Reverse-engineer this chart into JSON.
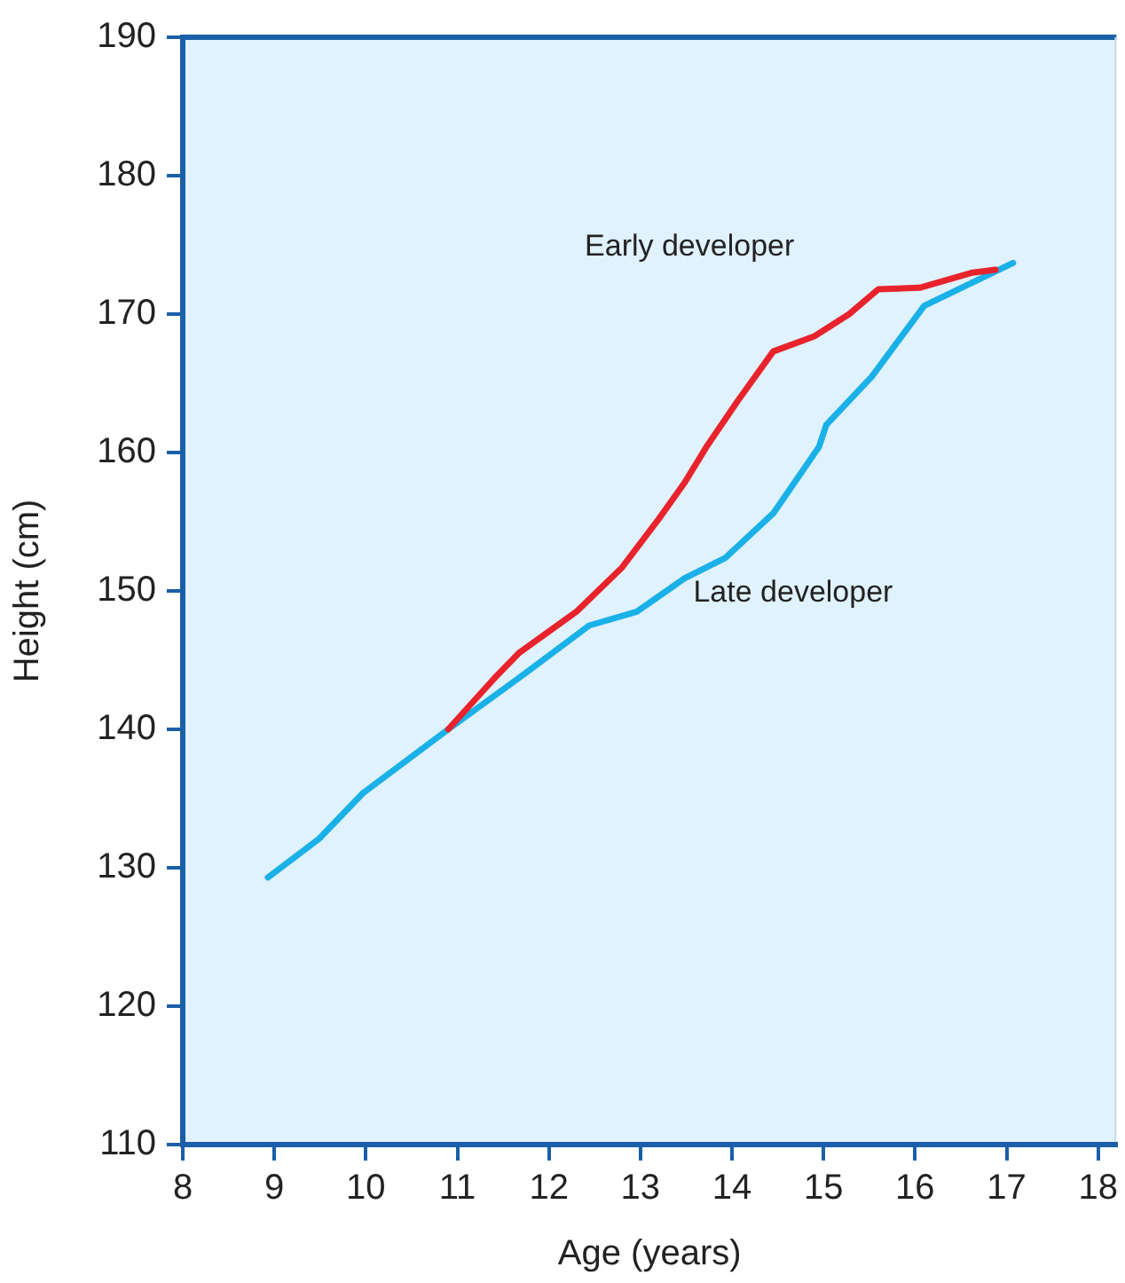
{
  "chart_data": {
    "type": "line",
    "xlabel": "Age (years)",
    "ylabel": "Height (cm)",
    "xlim": [
      8,
      18.2
    ],
    "xticks": [
      8,
      9,
      10,
      11,
      12,
      13,
      14,
      15,
      16,
      17,
      18
    ],
    "ylim": [
      110,
      190
    ],
    "yticks": [
      110,
      120,
      130,
      140,
      150,
      160,
      170,
      180,
      190
    ],
    "grid": false,
    "legend": false,
    "marker": "none",
    "line_style": "solid",
    "series": [
      {
        "name": "Early developer",
        "color": "#e8232b",
        "x": [
          10.9,
          11.42,
          11.67,
          12.3,
          12.8,
          13.2,
          13.48,
          13.73,
          14.06,
          14.45,
          14.9,
          15.28,
          15.6,
          16.05,
          16.63,
          16.88
        ],
        "values": [
          140,
          143.8,
          145.5,
          148.5,
          151.7,
          155.2,
          157.8,
          160.5,
          163.7,
          167.3,
          168.4,
          170,
          171.8,
          171.9,
          173,
          173.2
        ]
      },
      {
        "name": "Late developer",
        "color": "#1ab0e8",
        "x": [
          8.93,
          9.49,
          9.97,
          10.9,
          11.67,
          12.44,
          12.96,
          13.48,
          13.93,
          14.45,
          14.95,
          15.03,
          15.53,
          16.1,
          17.07
        ],
        "values": [
          129.3,
          132.1,
          135.4,
          140,
          143.7,
          147.5,
          148.5,
          150.9,
          152.4,
          155.6,
          160.4,
          162,
          165.5,
          170.6,
          173.7
        ]
      }
    ]
  }
}
